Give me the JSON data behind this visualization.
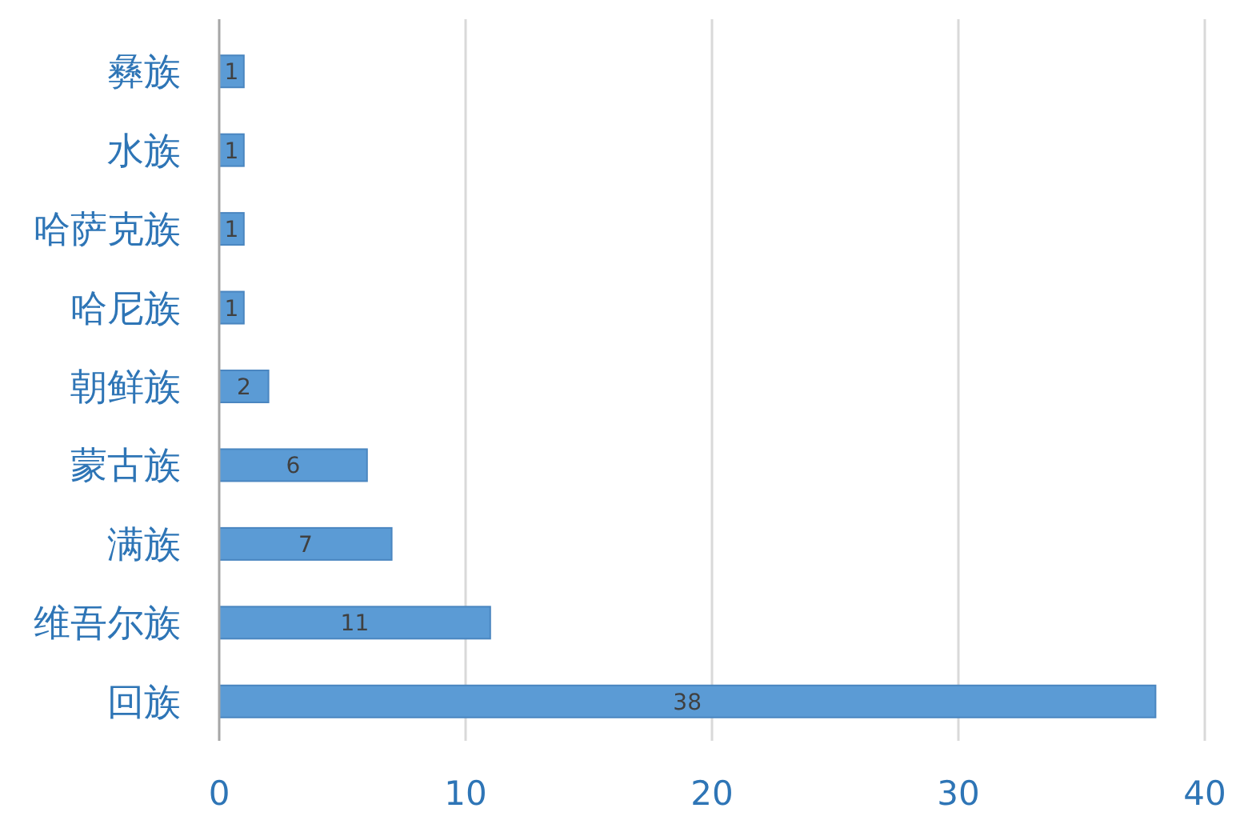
{
  "chart_data": {
    "type": "bar",
    "orientation": "horizontal",
    "categories": [
      "彝族",
      "水族",
      "哈萨克族",
      "哈尼族",
      "朝鲜族",
      "蒙古族",
      "满族",
      "维吾尔族",
      "回族"
    ],
    "values": [
      1,
      1,
      1,
      1,
      2,
      6,
      7,
      11,
      38
    ],
    "color": "#5b9bd5",
    "xlim": [
      0,
      40
    ],
    "xticks": [
      0,
      10,
      20,
      30,
      40
    ],
    "grid": "x",
    "data_labels": true
  }
}
